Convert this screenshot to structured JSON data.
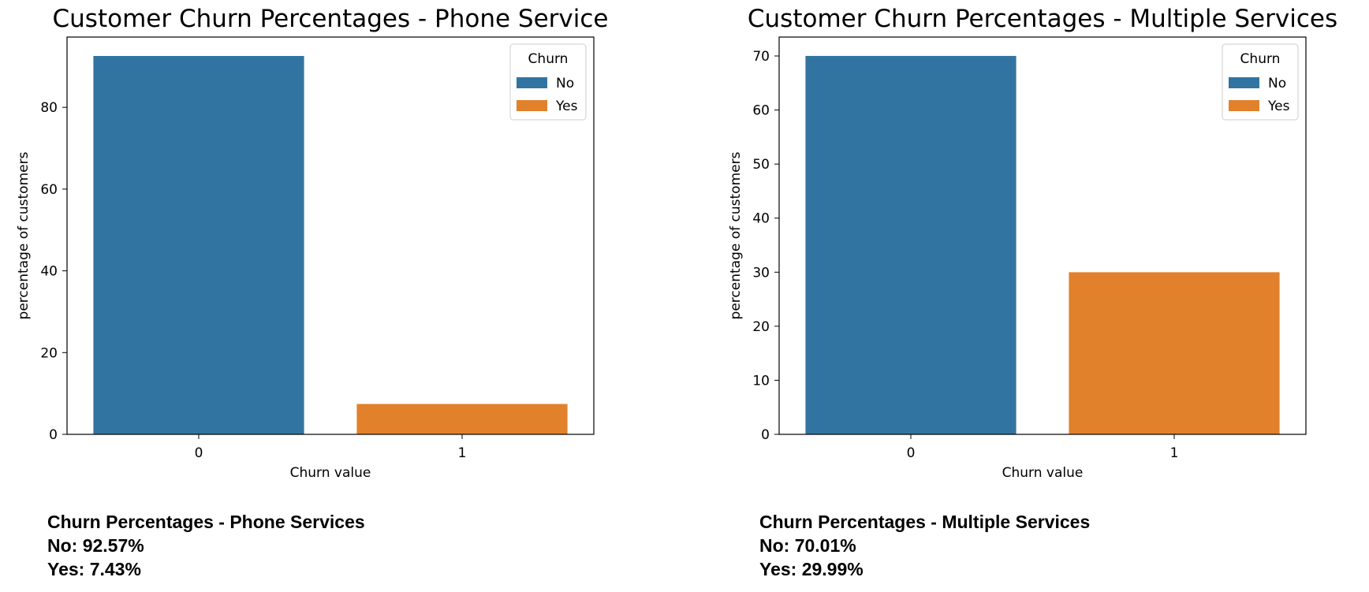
{
  "chart_data": [
    {
      "type": "bar",
      "title": "Customer Churn Percentages - Phone Service",
      "xlabel": "Churn value",
      "ylabel": "percentage of customers",
      "categories": [
        "0",
        "1"
      ],
      "series": [
        {
          "name": "No",
          "values": [
            92.57,
            null
          ]
        },
        {
          "name": "Yes",
          "values": [
            null,
            7.43
          ]
        }
      ],
      "ylim": [
        0,
        97.2
      ],
      "yticks": [
        "0",
        "20",
        "40",
        "60",
        "80"
      ],
      "legend": {
        "title": "Churn",
        "placement": "top-right",
        "entries": [
          "No",
          "Yes"
        ]
      },
      "grid": false,
      "colors": {
        "No": "#3274a1",
        "Yes": "#e1812c"
      }
    },
    {
      "type": "bar",
      "title": "Customer Churn Percentages - Multiple Services",
      "xlabel": "Churn value",
      "ylabel": "percentage of customers",
      "categories": [
        "0",
        "1"
      ],
      "series": [
        {
          "name": "No",
          "values": [
            70.01,
            null
          ]
        },
        {
          "name": "Yes",
          "values": [
            null,
            29.99
          ]
        }
      ],
      "ylim": [
        0,
        73.5
      ],
      "yticks": [
        "0",
        "10",
        "20",
        "30",
        "40",
        "50",
        "60",
        "70"
      ],
      "legend": {
        "title": "Churn",
        "placement": "top-right",
        "entries": [
          "No",
          "Yes"
        ]
      },
      "grid": false,
      "colors": {
        "No": "#3274a1",
        "Yes": "#e1812c"
      }
    }
  ],
  "summaries": [
    {
      "heading": "Churn Percentages - Phone Services",
      "no": "No: 92.57%",
      "yes": "Yes: 7.43%"
    },
    {
      "heading": "Churn Percentages - Multiple Services",
      "no": "No: 70.01%",
      "yes": "Yes: 29.99%"
    }
  ]
}
